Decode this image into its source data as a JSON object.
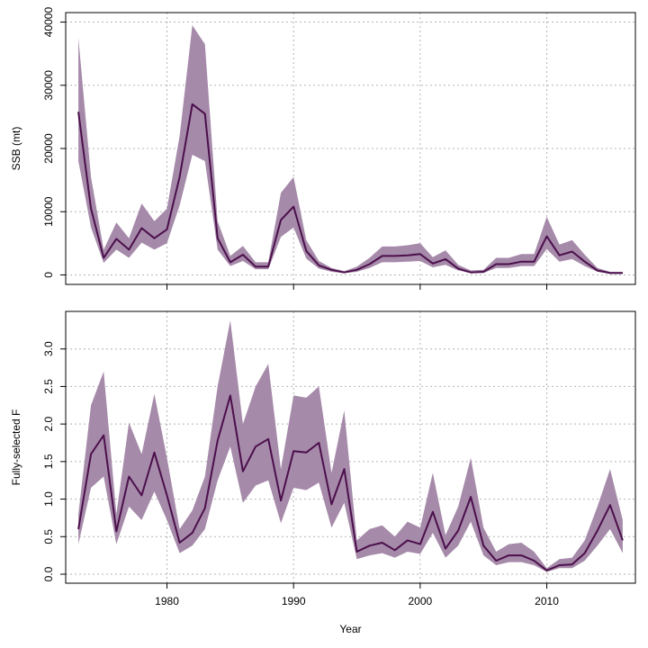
{
  "chart_data": [
    {
      "type": "line",
      "ylabel": "SSB (mt)",
      "xlabel": "",
      "xlim": [
        1972,
        2017
      ],
      "ylim": [
        -1500,
        41500
      ],
      "x_ticks": [
        1980,
        1990,
        2000,
        2010
      ],
      "y_ticks": [
        0,
        10000,
        20000,
        30000,
        40000
      ],
      "y_tick_labels": [
        "0",
        "10000",
        "20000",
        "30000",
        "40000"
      ],
      "grid": true,
      "colors": {
        "line": "#4b0f4b",
        "band": "#a68aaa"
      },
      "years": [
        1973,
        1974,
        1975,
        1976,
        1977,
        1978,
        1979,
        1980,
        1981,
        1982,
        1983,
        1984,
        1985,
        1986,
        1987,
        1988,
        1989,
        1990,
        1991,
        1992,
        1993,
        1994,
        1995,
        1996,
        1997,
        1998,
        1999,
        2000,
        2001,
        2002,
        2003,
        2004,
        2005,
        2006,
        2007,
        2008,
        2009,
        2010,
        2011,
        2012,
        2013,
        2014,
        2015,
        2016
      ],
      "series": [
        {
          "name": "SSB",
          "values": [
            25800,
            10500,
            2700,
            5700,
            4000,
            7400,
            5800,
            7200,
            15500,
            27000,
            25500,
            5800,
            2000,
            3200,
            1300,
            1300,
            8700,
            10800,
            3800,
            1500,
            800,
            400,
            800,
            1700,
            3000,
            3000,
            3100,
            3300,
            1800,
            2500,
            1000,
            400,
            500,
            1700,
            1700,
            2100,
            2100,
            6100,
            3100,
            3700,
            2100,
            700,
            300,
            300
          ]
        },
        {
          "name": "Upper",
          "values": [
            37500,
            15500,
            4000,
            8300,
            5800,
            11300,
            8500,
            10500,
            22000,
            39500,
            36500,
            8500,
            3000,
            4600,
            2000,
            2000,
            13000,
            15500,
            5500,
            2200,
            1100,
            600,
            1300,
            2700,
            4500,
            4500,
            4700,
            5000,
            2800,
            3900,
            1600,
            700,
            800,
            2700,
            2700,
            3300,
            3300,
            9200,
            4800,
            5500,
            3200,
            1100,
            500,
            500
          ]
        },
        {
          "name": "Lower",
          "values": [
            18000,
            7500,
            1900,
            4000,
            2700,
            5100,
            4000,
            5000,
            11000,
            19000,
            18000,
            4000,
            1400,
            2200,
            900,
            900,
            6000,
            7500,
            2600,
            1000,
            500,
            300,
            500,
            1100,
            2000,
            2000,
            2100,
            2200,
            1200,
            1600,
            700,
            300,
            300,
            1100,
            1100,
            1400,
            1400,
            4100,
            2100,
            2500,
            1400,
            500,
            200,
            200
          ]
        }
      ]
    },
    {
      "type": "line",
      "ylabel": "Fully-selected F",
      "xlabel": "Year",
      "xlim": [
        1972,
        2017
      ],
      "ylim": [
        -0.12,
        3.5
      ],
      "x_ticks": [
        1980,
        1990,
        2000,
        2010
      ],
      "x_tick_labels": [
        "1980",
        "1990",
        "2000",
        "2010"
      ],
      "y_ticks": [
        0.0,
        0.5,
        1.0,
        1.5,
        2.0,
        2.5,
        3.0
      ],
      "y_tick_labels": [
        "0.0",
        "0.5",
        "1.0",
        "1.5",
        "2.0",
        "2.5",
        "3.0"
      ],
      "grid": true,
      "colors": {
        "line": "#4b0f4b",
        "band": "#a68aaa"
      },
      "years": [
        1973,
        1974,
        1975,
        1976,
        1977,
        1978,
        1979,
        1980,
        1981,
        1982,
        1983,
        1984,
        1985,
        1986,
        1987,
        1988,
        1989,
        1990,
        1991,
        1992,
        1993,
        1994,
        1995,
        1996,
        1997,
        1998,
        1999,
        2000,
        2001,
        2002,
        2003,
        2004,
        2005,
        2006,
        2007,
        2008,
        2009,
        2010,
        2011,
        2012,
        2013,
        2014,
        2015,
        2016
      ],
      "series": [
        {
          "name": "F",
          "values": [
            0.6,
            1.6,
            1.85,
            0.57,
            1.3,
            1.05,
            1.62,
            1.05,
            0.42,
            0.55,
            0.88,
            1.78,
            2.38,
            1.37,
            1.7,
            1.8,
            0.98,
            1.64,
            1.62,
            1.75,
            0.93,
            1.4,
            0.3,
            0.38,
            0.42,
            0.32,
            0.45,
            0.4,
            0.83,
            0.34,
            0.58,
            1.03,
            0.38,
            0.18,
            0.25,
            0.25,
            0.18,
            0.05,
            0.12,
            0.13,
            0.28,
            0.58,
            0.92,
            0.45
          ]
        },
        {
          "name": "Upper",
          "values": [
            0.8,
            2.25,
            2.7,
            0.8,
            2.02,
            1.6,
            2.4,
            1.55,
            0.6,
            0.85,
            1.3,
            2.5,
            3.38,
            2.0,
            2.5,
            2.8,
            1.4,
            2.38,
            2.35,
            2.5,
            1.35,
            2.18,
            0.45,
            0.6,
            0.65,
            0.5,
            0.7,
            0.62,
            1.35,
            0.52,
            0.9,
            1.55,
            0.62,
            0.3,
            0.4,
            0.42,
            0.3,
            0.08,
            0.2,
            0.22,
            0.45,
            0.9,
            1.4,
            0.72
          ]
        },
        {
          "name": "Lower",
          "values": [
            0.4,
            1.15,
            1.3,
            0.4,
            0.9,
            0.72,
            1.1,
            0.72,
            0.28,
            0.38,
            0.6,
            1.25,
            1.7,
            0.95,
            1.18,
            1.25,
            0.68,
            1.15,
            1.12,
            1.22,
            0.62,
            0.95,
            0.2,
            0.25,
            0.28,
            0.22,
            0.3,
            0.27,
            0.55,
            0.22,
            0.38,
            0.7,
            0.25,
            0.12,
            0.16,
            0.16,
            0.12,
            0.03,
            0.08,
            0.08,
            0.18,
            0.38,
            0.6,
            0.28
          ]
        }
      ]
    }
  ]
}
